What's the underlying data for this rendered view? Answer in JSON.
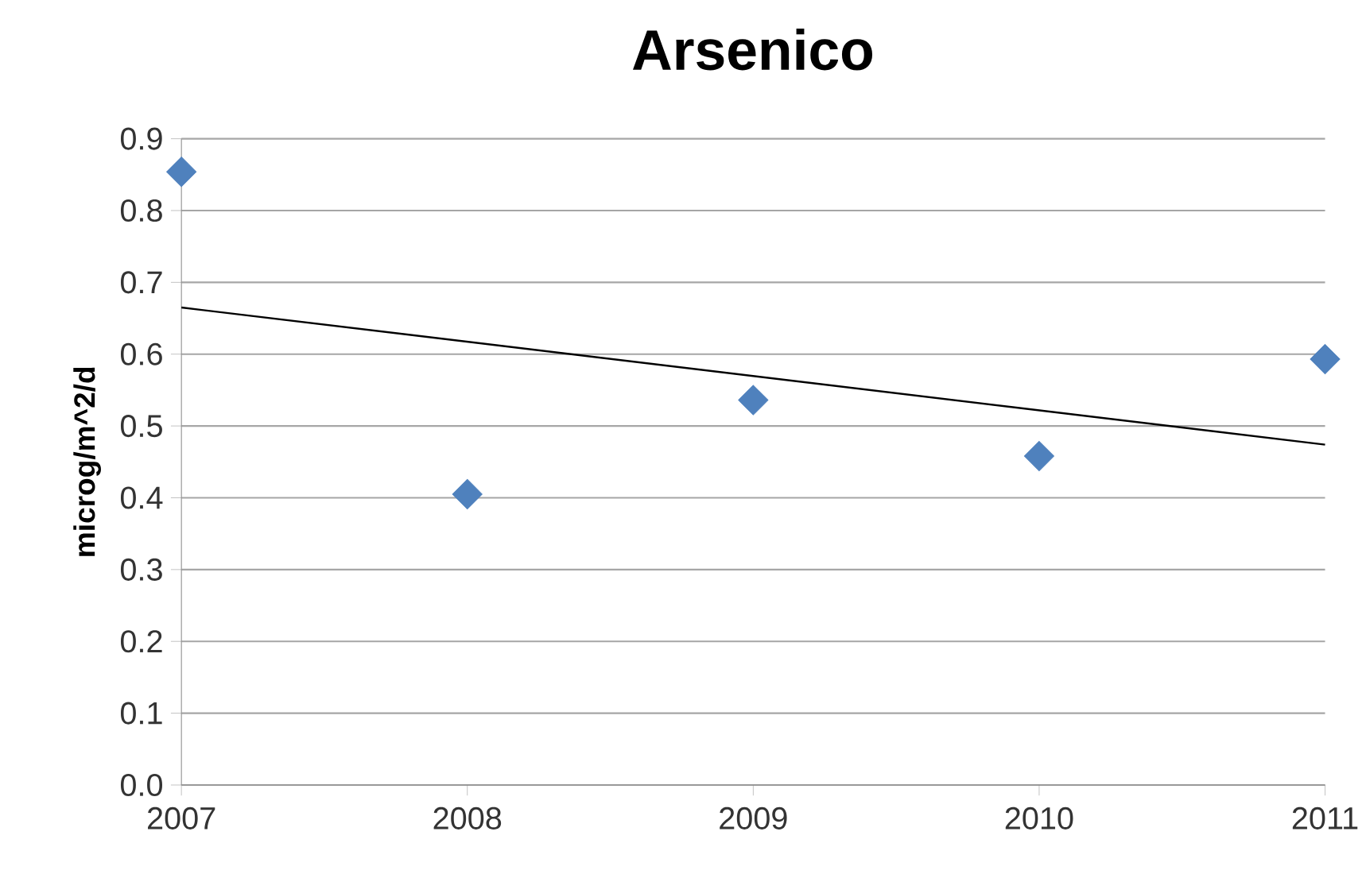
{
  "chart_data": {
    "type": "scatter",
    "title": "Arsenico",
    "ylabel": "microg/m^2/d",
    "xlim": [
      2007,
      2011
    ],
    "xticks": [
      2007,
      2008,
      2009,
      2010,
      2011
    ],
    "ylim": [
      0,
      0.9
    ],
    "yticks": [
      {
        "value": 0,
        "label": "0.0"
      },
      0.1,
      0.2,
      0.3,
      0.4,
      0.5,
      0.6,
      0.7,
      0.8,
      0.9
    ],
    "grid": "y",
    "series": [
      {
        "color": "#4f81bd",
        "marker": "diamond",
        "x": [
          2007,
          2008,
          2009,
          2010,
          2011
        ],
        "values": [
          0.854,
          0.405,
          0.536,
          0.458,
          0.593
        ]
      },
      {
        "type": "line",
        "color": "#000000",
        "marker": "none",
        "line_style": "solid",
        "x": [
          2007,
          2011
        ],
        "values": [
          0.665,
          0.474
        ]
      }
    ]
  }
}
